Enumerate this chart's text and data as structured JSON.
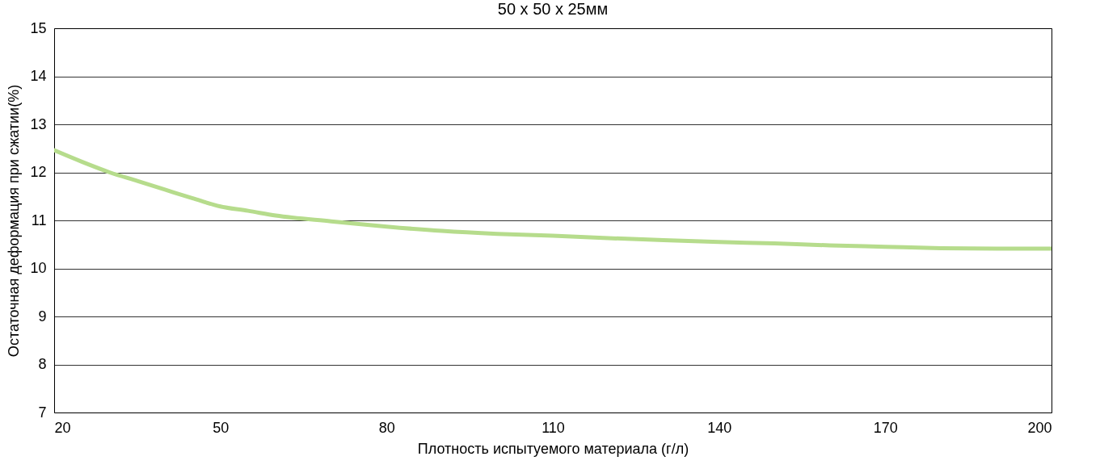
{
  "chart_data": {
    "type": "line",
    "title": "50 x 50 x 25мм",
    "xlabel": "Плотность испытуемого материала (г/л)",
    "ylabel": "Остаточная деформация при сжатии(%)",
    "x": [
      20,
      25,
      30,
      35,
      40,
      45,
      50,
      55,
      60,
      70,
      80,
      90,
      100,
      110,
      120,
      130,
      140,
      150,
      160,
      170,
      180,
      190,
      200
    ],
    "series": [
      {
        "color": "#b6dc8c",
        "values": [
          12.46,
          12.22,
          12.0,
          11.82,
          11.64,
          11.46,
          11.29,
          11.2,
          11.1,
          10.98,
          10.87,
          10.78,
          10.72,
          10.68,
          10.63,
          10.59,
          10.55,
          10.52,
          10.48,
          10.45,
          10.42,
          10.41,
          10.41
        ]
      }
    ],
    "xlim": [
      20,
      200
    ],
    "xticks": [
      20,
      50,
      80,
      110,
      140,
      170,
      200
    ],
    "ylim": [
      7,
      15
    ],
    "yticks": [
      7,
      8,
      9,
      10,
      11,
      12,
      13,
      14,
      15
    ],
    "grid": "y",
    "legend": false,
    "marker": "none",
    "line_style": "solid"
  }
}
